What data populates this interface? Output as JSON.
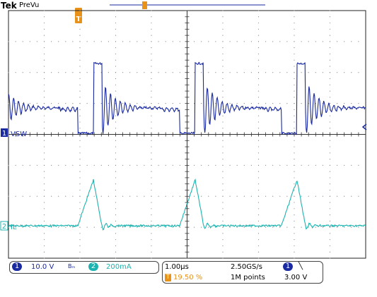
{
  "header": {
    "brand": "Tek",
    "mode": "PreVu"
  },
  "colors": {
    "ch1": "#1a2aa0",
    "ch2": "#1bb3b0",
    "trigger": "#e8921a",
    "grid": "#222222",
    "dots": "#888888"
  },
  "channels": [
    {
      "number": "1",
      "label": "VSW",
      "scale": "10.0 V",
      "bw_icon": "bandwidth-limit-icon",
      "bw_text": "Bₘ"
    },
    {
      "number": "2",
      "label": "IL",
      "scale": "200mA"
    }
  ],
  "timebase": {
    "scale": "1.00µs",
    "sample_rate": "2.50GS/s",
    "record_length": "1M points"
  },
  "trigger": {
    "marker": "T",
    "position": "19.50 %",
    "source": "1",
    "slope_icon": "falling-edge-icon",
    "slope_glyph": "╲",
    "level": "3.00 V"
  },
  "chart_data": {
    "type": "line",
    "x_unit": "µs/div",
    "x_divisions": 10,
    "y_divisions": 8,
    "grid": true,
    "series": [
      {
        "name": "VSW",
        "period_div": 2.85,
        "low_div": -0.05,
        "ringing_level_div": 0.75,
        "high_pulse_div": 2.2
      },
      {
        "name": "IL",
        "period_div": 2.85,
        "base_div": -0.05,
        "peak_div": 1.65
      }
    ]
  }
}
